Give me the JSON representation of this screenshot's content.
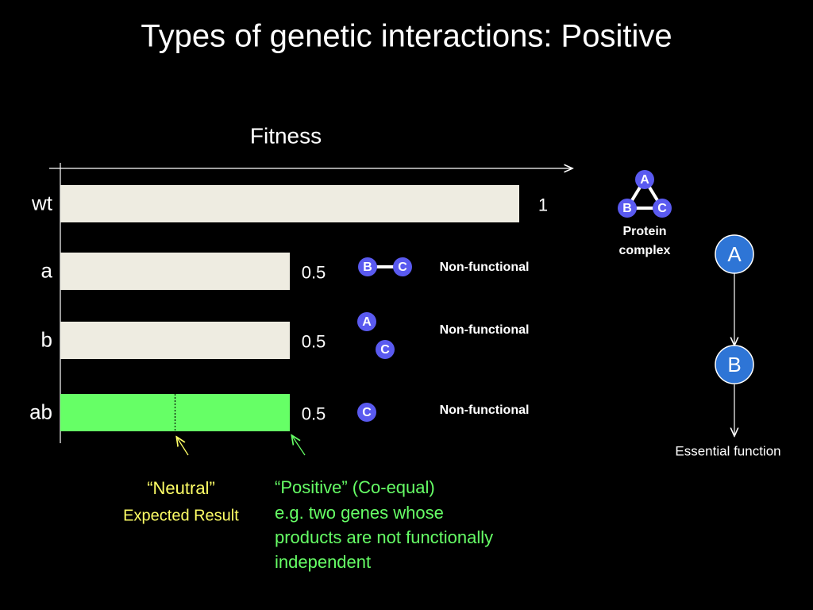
{
  "title": "Types of genetic interactions:  Positive",
  "chart_data": {
    "type": "bar",
    "orientation": "horizontal",
    "x_label": "Fitness",
    "categories": [
      "wt",
      "a",
      "b",
      "ab"
    ],
    "values": [
      1,
      0.5,
      0.5,
      0.5
    ],
    "colors": [
      "#eeece1",
      "#eeece1",
      "#eeece1",
      "#66ff66"
    ],
    "xlim": [
      0,
      1
    ],
    "expected_value": 0.25
  },
  "neutral": {
    "label": "“Neutral”",
    "sublabel": "Expected Result"
  },
  "positive": {
    "lines": [
      "“Positive” (Co-equal)",
      "e.g. two genes whose",
      "products are not functionally",
      "independent"
    ]
  },
  "states": [
    {
      "nodes": [
        "B",
        "C"
      ],
      "status": "Non-functional"
    },
    {
      "nodes": [
        "A",
        "C"
      ],
      "status": "Non-functional"
    },
    {
      "nodes": [
        "C"
      ],
      "status": "Non-functional"
    }
  ],
  "complex": {
    "nodes": [
      "A",
      "B",
      "C"
    ],
    "label": [
      "Protein",
      "complex"
    ]
  },
  "pathway": {
    "nodes": [
      "A",
      "B"
    ],
    "output": "Essential function"
  }
}
